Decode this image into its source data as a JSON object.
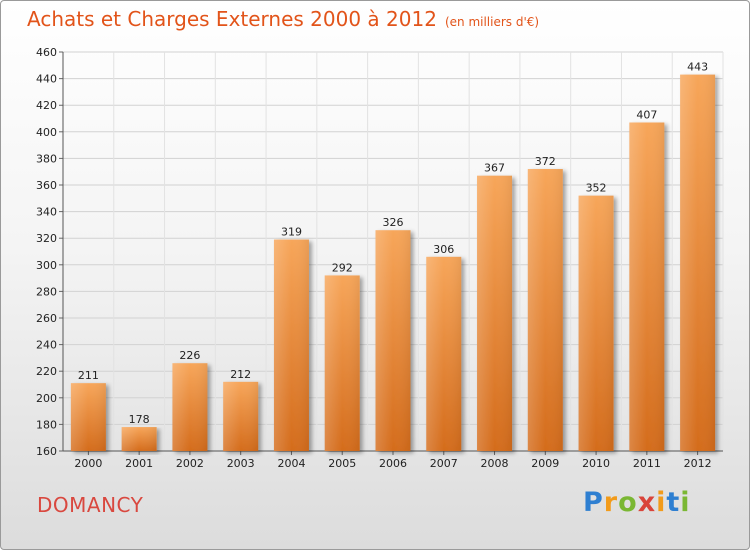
{
  "page": {
    "title": "Achats et Charges Externes 2000 à 2012",
    "subtitle": "(en milliers d'€)",
    "town": "DOMANCY",
    "logo": {
      "letters": [
        "P",
        "r",
        "o",
        "x",
        "i",
        "t",
        "i"
      ],
      "colors": [
        "#2e7fd1",
        "#f29b1a",
        "#7ab733",
        "#d9443a",
        "#f29b1a",
        "#2e7fd1",
        "#7ab733"
      ]
    }
  },
  "chart_data": {
    "type": "bar",
    "categories": [
      "2000",
      "2001",
      "2002",
      "2003",
      "2004",
      "2005",
      "2006",
      "2007",
      "2008",
      "2009",
      "2010",
      "2011",
      "2012"
    ],
    "values": [
      211,
      178,
      226,
      212,
      319,
      292,
      326,
      306,
      367,
      372,
      352,
      407,
      443
    ],
    "title": "Achats et Charges Externes 2000 à 2012",
    "xlabel": "",
    "ylabel": "",
    "ylim": [
      160,
      460
    ],
    "yticks": [
      160,
      180,
      200,
      220,
      240,
      260,
      280,
      300,
      320,
      340,
      360,
      380,
      400,
      420,
      440,
      460
    ],
    "grid": true,
    "legend": "none",
    "bar_color": "#f0913a"
  }
}
